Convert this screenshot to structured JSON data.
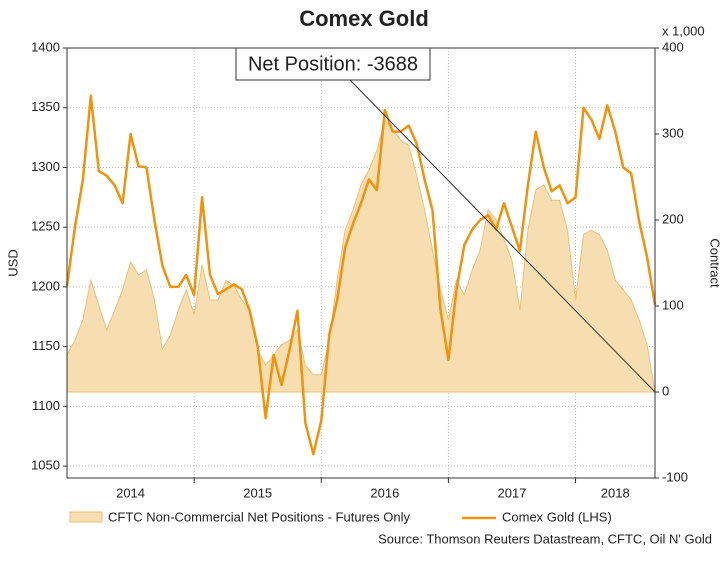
{
  "chart_data": {
    "type": "line",
    "title": "Comex Gold",
    "y_label": "USD",
    "y2_label": "Contract",
    "y2_unit": "x 1,000",
    "source": "Source: Thomson Reuters Datastream, CFTC, Oil N' Gold",
    "annotation": "Net Position: -3688",
    "xlim": [
      2014,
      2018.625
    ],
    "xgrid": [
      2015,
      2016,
      2017,
      2018
    ],
    "xticks": [
      {
        "value": 2014.5,
        "label": "2014"
      },
      {
        "value": 2015.5,
        "label": "2015"
      },
      {
        "value": 2016.5,
        "label": "2016"
      },
      {
        "value": 2017.5,
        "label": "2017"
      },
      {
        "value": 2018.3125,
        "label": "2018"
      }
    ],
    "ylim": [
      1040,
      1400
    ],
    "yticks": [
      1050,
      1100,
      1150,
      1200,
      1250,
      1300,
      1350,
      1400
    ],
    "y2lim": [
      -100,
      400
    ],
    "y2ticks": [
      -100,
      0,
      100,
      200,
      300,
      400
    ],
    "grid": true,
    "x": [
      2014,
      2014.0625,
      2014.125,
      2014.1875,
      2014.25,
      2014.3125,
      2014.375,
      2014.4375,
      2014.5,
      2014.5625,
      2014.625,
      2014.6875,
      2014.75,
      2014.8125,
      2014.875,
      2014.9375,
      2015,
      2015.0625,
      2015.125,
      2015.1875,
      2015.25,
      2015.3125,
      2015.375,
      2015.4375,
      2015.5,
      2015.5625,
      2015.625,
      2015.6875,
      2015.75,
      2015.8125,
      2015.875,
      2015.9375,
      2016,
      2016.0625,
      2016.125,
      2016.1875,
      2016.25,
      2016.3125,
      2016.375,
      2016.4375,
      2016.5,
      2016.5625,
      2016.625,
      2016.6875,
      2016.75,
      2016.8125,
      2016.875,
      2016.9375,
      2017,
      2017.0625,
      2017.125,
      2017.1875,
      2017.25,
      2017.3125,
      2017.375,
      2017.4375,
      2017.5,
      2017.5625,
      2017.625,
      2017.6875,
      2017.75,
      2017.8125,
      2017.875,
      2017.9375,
      2018,
      2018.0625,
      2018.125,
      2018.1875,
      2018.25,
      2018.3125,
      2018.375,
      2018.4375,
      2018.5,
      2018.5625,
      2018.625
    ],
    "series": [
      {
        "name": "CFTC Non-Commercial Net Positions - Futures Only",
        "type": "area",
        "axis": "y2",
        "color": "#f6deb0",
        "edge_color": "#e9c07c",
        "values": [
          43,
          60,
          84,
          130,
          101,
          72,
          95,
          119,
          151,
          136,
          142,
          107,
          50,
          66,
          95,
          119,
          90,
          148,
          107,
          107,
          130,
          124,
          107,
          95,
          49,
          31,
          43,
          55,
          60,
          72,
          31,
          20,
          20,
          60,
          130,
          188,
          212,
          241,
          258,
          281,
          316,
          305,
          293,
          287,
          252,
          212,
          165,
          119,
          84,
          130,
          113,
          142,
          165,
          212,
          200,
          177,
          153,
          95,
          188,
          235,
          241,
          223,
          223,
          188,
          107,
          183,
          188,
          183,
          165,
          130,
          119,
          107,
          84,
          55,
          0
        ]
      },
      {
        "name": "Comex Gold (LHS)",
        "type": "line",
        "color": "#f0920c",
        "values": [
          1201,
          1250,
          1290,
          1360,
          1297,
          1293,
          1285,
          1270,
          1328,
          1301,
          1300,
          1256,
          1218,
          1200,
          1200,
          1210,
          1193,
          1275,
          1210,
          1194,
          1198,
          1202,
          1198,
          1180,
          1150,
          1090,
          1143,
          1118,
          1147,
          1180,
          1086,
          1060,
          1088,
          1160,
          1189,
          1233,
          1253,
          1270,
          1290,
          1281,
          1348,
          1330,
          1330,
          1335,
          1320,
          1290,
          1264,
          1181,
          1139,
          1197,
          1235,
          1248,
          1256,
          1260,
          1248,
          1270,
          1250,
          1230,
          1285,
          1330,
          1300,
          1280,
          1285,
          1270,
          1275,
          1350,
          1340,
          1324,
          1352,
          1330,
          1300,
          1295,
          1255,
          1225,
          1185
        ]
      }
    ]
  }
}
